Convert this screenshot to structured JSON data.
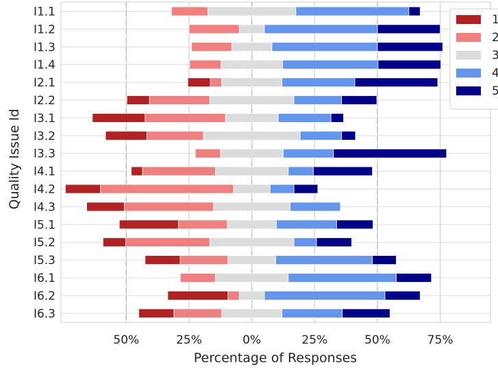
{
  "chart_data": {
    "type": "bar",
    "orientation": "horizontal",
    "stacking": "diverging",
    "xlabel": "Percentage of Responses",
    "ylabel": "Quality Issue Id",
    "xlim": [
      -76,
      95
    ],
    "x_ticks": [
      {
        "value": -50,
        "label": "50%"
      },
      {
        "value": -25,
        "label": "25%"
      },
      {
        "value": 0,
        "label": "0%"
      },
      {
        "value": 25,
        "label": "25%"
      },
      {
        "value": 50,
        "label": "50%"
      },
      {
        "value": 75,
        "label": "75%"
      }
    ],
    "grid": true,
    "legend_position": "top-right",
    "categories": [
      "I1.1",
      "I1.2",
      "I1.3",
      "I1.4",
      "I2.1",
      "I2.2",
      "I3.1",
      "I3.2",
      "I3.3",
      "I4.1",
      "I4.2",
      "I4.3",
      "I5.1",
      "I5.2",
      "I5.3",
      "I6.1",
      "I6.2",
      "I6.3"
    ],
    "series": [
      {
        "name": "1",
        "color": "#b22222",
        "values": [
          0,
          0,
          0,
          0,
          9,
          9,
          21,
          16.5,
          0,
          4.5,
          14,
          15,
          23.5,
          9,
          14,
          0,
          24,
          14
        ]
      },
      {
        "name": "2",
        "color": "#f08080",
        "values": [
          14.5,
          20,
          16,
          12.5,
          4.5,
          24,
          32,
          22.5,
          10,
          29,
          53,
          35.5,
          19.5,
          33.5,
          19,
          14,
          4.5,
          19
        ]
      },
      {
        "name": "3",
        "color": "#dcdcdc",
        "values": [
          35,
          10,
          16,
          24.5,
          24,
          33.5,
          21,
          38.5,
          25,
          29,
          14.5,
          30.5,
          19.5,
          33.5,
          19,
          29,
          10,
          24
        ]
      },
      {
        "name": "4",
        "color": "#6495ed",
        "values": [
          45,
          45,
          42,
          38,
          29,
          19,
          21,
          16.5,
          20,
          10,
          9.5,
          20,
          24,
          9,
          38.5,
          43,
          48,
          24
        ]
      },
      {
        "name": "5",
        "color": "#00008b",
        "values": [
          4.5,
          25,
          26,
          25,
          33,
          14,
          5,
          5.5,
          45,
          23.5,
          9.5,
          0,
          14.5,
          14,
          9.5,
          14,
          14,
          19
        ]
      }
    ]
  }
}
